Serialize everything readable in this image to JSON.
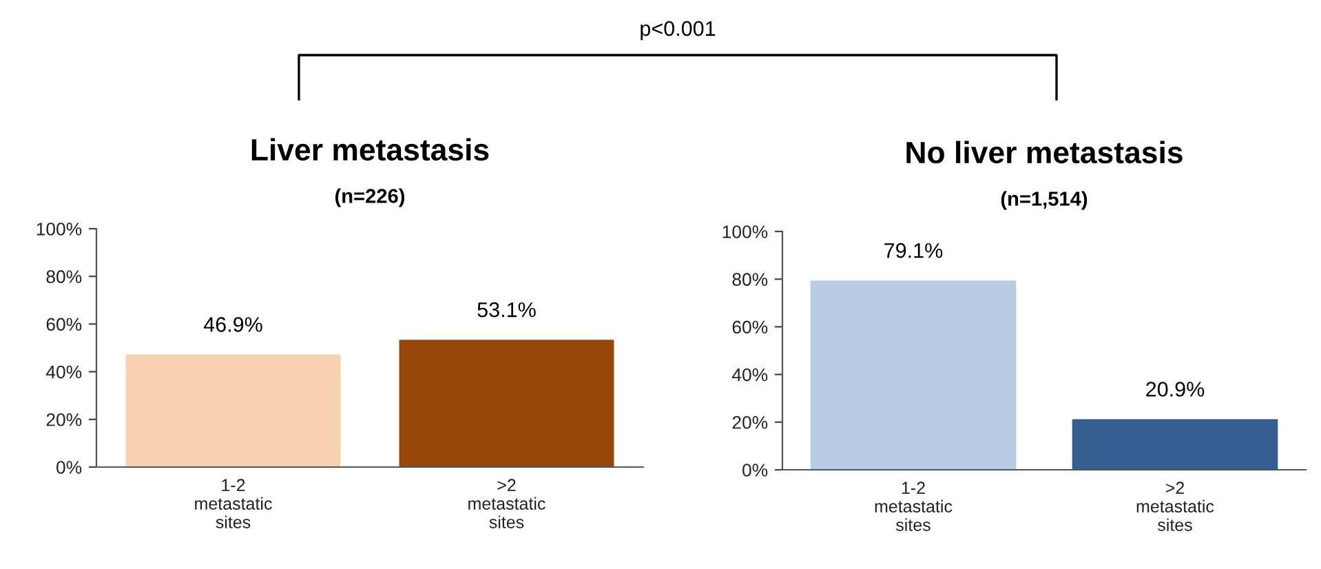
{
  "chart_data": [
    {
      "type": "bar",
      "title": "Liver metastasis",
      "subtitle": "(n=226)",
      "categories": [
        "1-2\nmetastatic\nsites",
        ">2\nmetastatic\nsites"
      ],
      "values": [
        46.9,
        53.1
      ],
      "colors": [
        "#f9d3b1",
        "#974509"
      ],
      "value_labels": [
        "46.9%",
        "53.1%"
      ],
      "ylim": [
        0,
        100
      ],
      "yticks": [
        {
          "value": 0,
          "label": "0%"
        },
        {
          "value": 20,
          "label": "20%"
        },
        {
          "value": 40,
          "label": "40%"
        },
        {
          "value": 60,
          "label": "60%"
        },
        {
          "value": 80,
          "label": "80%"
        },
        {
          "value": 100,
          "label": "100%"
        }
      ],
      "grid": false,
      "annotations": [
        "p<0.001"
      ]
    },
    {
      "type": "bar",
      "title": "No liver metastasis",
      "subtitle": "(n=1,514)",
      "categories": [
        "1-2\nmetastatic\nsites",
        ">2\nmetastatic\nsites"
      ],
      "values": [
        79.1,
        20.9
      ],
      "colors": [
        "#b8cce4",
        "#365f91"
      ],
      "value_labels": [
        "79.1%",
        "20.9%"
      ],
      "ylim": [
        0,
        100
      ],
      "yticks": [
        {
          "value": 0,
          "label": "0%"
        },
        {
          "value": 20,
          "label": "20%"
        },
        {
          "value": 40,
          "label": "40%"
        },
        {
          "value": 60,
          "label": "60%"
        },
        {
          "value": 80,
          "label": "80%"
        },
        {
          "value": 100,
          "label": "100%"
        }
      ],
      "grid": false
    }
  ]
}
